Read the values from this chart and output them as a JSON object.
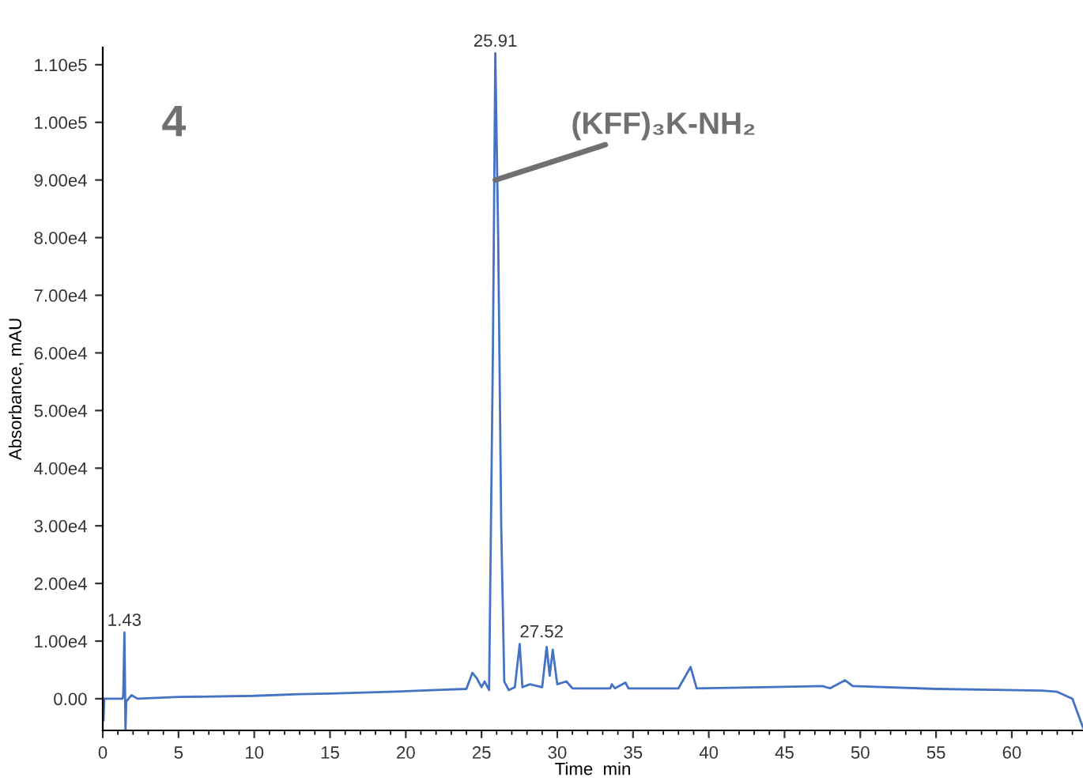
{
  "chart_data": {
    "type": "line",
    "xlabel": "Time  min",
    "ylabel": "Absorbance, mAU",
    "series": [
      {
        "color": "#4472c4",
        "x": [
          0,
          0.05,
          0.1,
          1.3,
          1.35,
          1.43,
          1.5,
          1.55,
          1.7,
          1.9,
          2.3,
          5,
          10,
          13,
          15,
          20,
          22,
          24,
          24.4,
          24.7,
          25,
          25.2,
          25.5,
          25.75,
          25.91,
          26.1,
          26.3,
          26.5,
          26.8,
          27.2,
          27.52,
          27.7,
          28.2,
          29,
          29.3,
          29.5,
          29.7,
          30,
          30.6,
          31,
          33.5,
          33.6,
          33.8,
          34.5,
          34.7,
          38,
          38.8,
          39.2,
          47.5,
          48,
          49,
          49.5,
          55,
          62,
          63,
          64,
          64.7
        ],
        "values": [
          0,
          -3800,
          0,
          0,
          500,
          11500,
          -5500,
          -500,
          0,
          600,
          0,
          300,
          500,
          800,
          900,
          1300,
          1500,
          1700,
          4500,
          3500,
          2000,
          3000,
          1500,
          60000,
          112000,
          80000,
          30000,
          3000,
          1500,
          2000,
          9500,
          2000,
          2500,
          2000,
          9000,
          4000,
          8500,
          2500,
          3000,
          1800,
          1800,
          2500,
          1800,
          2800,
          1800,
          1800,
          5500,
          1800,
          2200,
          1800,
          3200,
          2200,
          1700,
          1400,
          1200,
          0,
          -5000
        ]
      }
    ],
    "xlim": [
      0,
      64.7
    ],
    "xticks": [
      0,
      5,
      10,
      15,
      20,
      25,
      30,
      35,
      40,
      45,
      50,
      55,
      60
    ],
    "ylim": [
      -5500,
      113000
    ],
    "yticks": [
      {
        "value": 0,
        "label": "0.00"
      },
      {
        "value": 10000,
        "label": "1.00e4"
      },
      {
        "value": 20000,
        "label": "2.00e4"
      },
      {
        "value": 30000,
        "label": "3.00e4"
      },
      {
        "value": 40000,
        "label": "4.00e4"
      },
      {
        "value": 50000,
        "label": "5.00e4"
      },
      {
        "value": 60000,
        "label": "6.00e4"
      },
      {
        "value": 70000,
        "label": "7.00e4"
      },
      {
        "value": 80000,
        "label": "8.00e4"
      },
      {
        "value": 90000,
        "label": "9.00e4"
      },
      {
        "value": 100000,
        "label": "1.00e5"
      },
      {
        "value": 110000,
        "label": "1.10e5"
      }
    ],
    "grid": false,
    "marker": "none",
    "line_style": "solid",
    "annotations": [
      "4",
      {
        "text": "(KFF)₃K-NH₂",
        "x": 25.91,
        "y": 90000
      },
      {
        "text": "25.91",
        "x": 25.91,
        "y": 112000
      },
      {
        "text": "1.43",
        "x": 1.43,
        "y": 11500
      },
      {
        "text": "27.52",
        "x": 27.52,
        "y": 9500
      }
    ]
  }
}
